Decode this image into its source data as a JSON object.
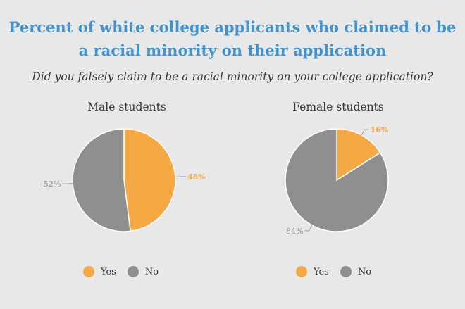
{
  "title_line1": "Percent of white college applicants who claimed to be",
  "title_line2": "a racial minority on their application",
  "subtitle": "Did you falsely claim to be a racial minority on your college application?",
  "colors": {
    "yes": "#f4a944",
    "no": "#8f8f8f"
  },
  "chart_data": [
    {
      "type": "pie",
      "title": "Male students",
      "categories": [
        "Yes",
        "No"
      ],
      "values": [
        48,
        52
      ],
      "labels": [
        "48%",
        "52%"
      ],
      "legend": [
        "Yes",
        "No"
      ],
      "legend_placement": "bottom"
    },
    {
      "type": "pie",
      "title": "Female students",
      "categories": [
        "Yes",
        "No"
      ],
      "values": [
        16,
        84
      ],
      "labels": [
        "16%",
        "84%"
      ],
      "legend": [
        "Yes",
        "No"
      ],
      "legend_placement": "bottom"
    }
  ]
}
